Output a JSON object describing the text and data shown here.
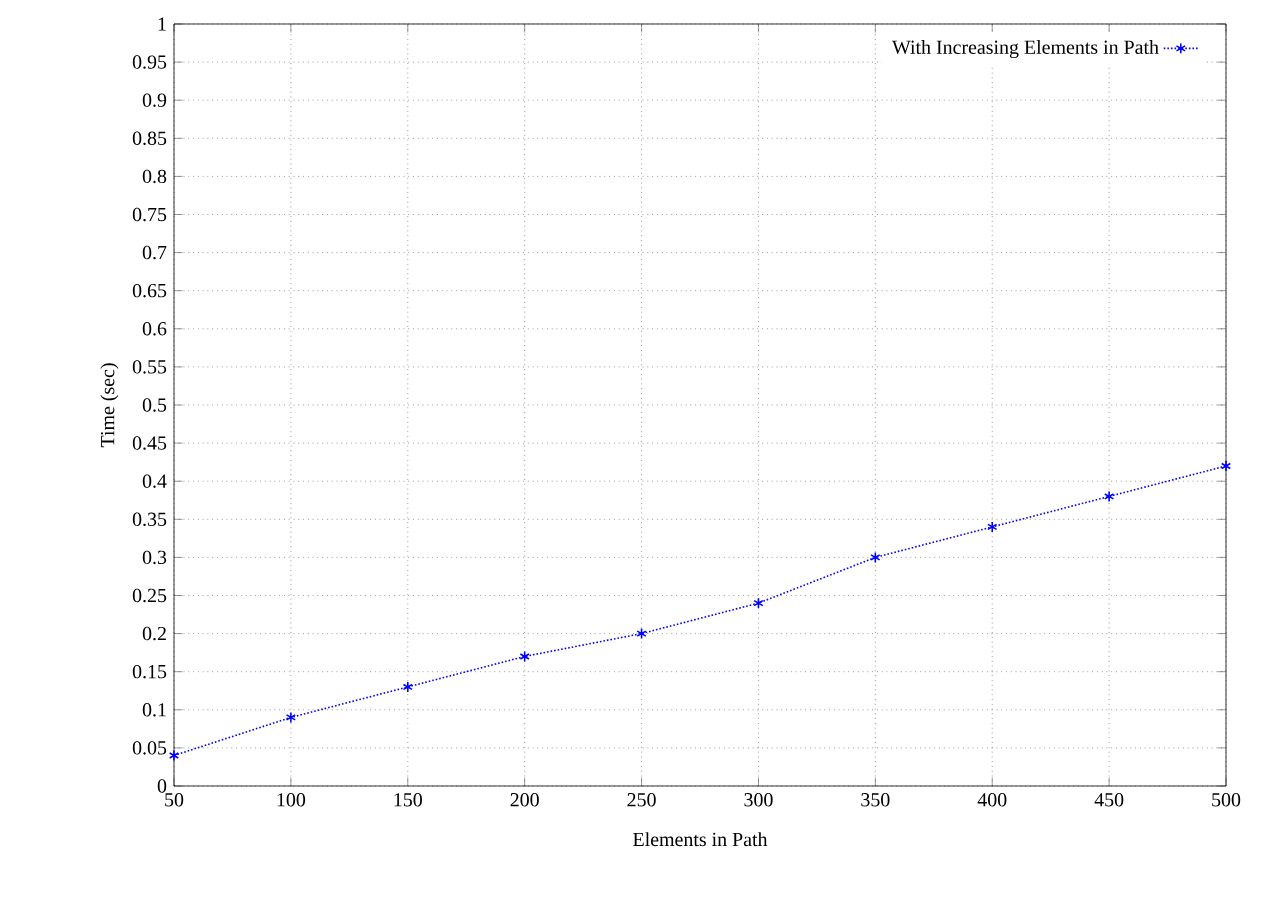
{
  "chart_data": {
    "type": "line",
    "xlabel": "Elements in Path",
    "ylabel": "Time (sec)",
    "x": [
      50,
      100,
      150,
      200,
      250,
      300,
      350,
      400,
      450,
      500
    ],
    "series": [
      {
        "name": "With Increasing Elements in Path",
        "color": "#0000ff",
        "values": [
          0.04,
          0.09,
          0.13,
          0.17,
          0.2,
          0.24,
          0.3,
          0.34,
          0.38,
          0.42
        ]
      }
    ],
    "xlim": [
      50,
      500
    ],
    "ylim": [
      0,
      1
    ],
    "xticks": [
      50,
      100,
      150,
      200,
      250,
      300,
      350,
      400,
      450,
      500
    ],
    "yticks": [
      0,
      0.05,
      0.1,
      0.15,
      0.2,
      0.25,
      0.3,
      0.35,
      0.4,
      0.45,
      0.5,
      0.55,
      0.6,
      0.65,
      0.7,
      0.75,
      0.8,
      0.85,
      0.9,
      0.95,
      1
    ],
    "grid": true,
    "legend": "top right",
    "marker": "cross",
    "line_style": "dotted"
  }
}
